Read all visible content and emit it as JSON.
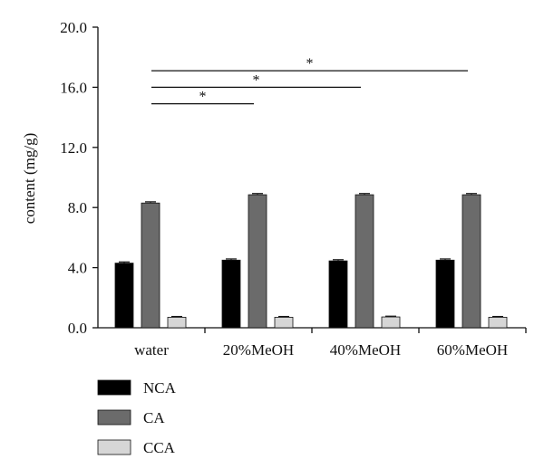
{
  "chart_data": {
    "type": "bar",
    "title": "",
    "xlabel": "",
    "ylabel": "content (mg/g)",
    "ylim": [
      0,
      20
    ],
    "yticks": [
      "0.0",
      "4.0",
      "8.0",
      "12.0",
      "16.0",
      "20.0"
    ],
    "categories": [
      "water",
      "20%MeOH",
      "40%MeOH",
      "60%MeOH"
    ],
    "series": [
      {
        "name": "NCA",
        "values": [
          4.3,
          4.5,
          4.45,
          4.5
        ],
        "errors": [
          0.08,
          0.08,
          0.08,
          0.08
        ],
        "color": "#000000"
      },
      {
        "name": "CA",
        "values": [
          8.3,
          8.85,
          8.85,
          8.85
        ],
        "errors": [
          0.08,
          0.08,
          0.08,
          0.08
        ],
        "color": "#6b6b6b"
      },
      {
        "name": "CCA",
        "values": [
          0.7,
          0.7,
          0.72,
          0.7
        ],
        "errors": [
          0.05,
          0.05,
          0.05,
          0.05
        ],
        "color": "#d6d6d6"
      }
    ],
    "significance": [
      {
        "from": "water",
        "to": "20%MeOH",
        "y": 14.9,
        "label": "*"
      },
      {
        "from": "water",
        "to": "40%MeOH",
        "y": 16.0,
        "label": "*"
      },
      {
        "from": "water",
        "to": "60%MeOH",
        "y": 17.1,
        "label": "*"
      }
    ],
    "grid": false,
    "legend_position": "bottom-left"
  }
}
